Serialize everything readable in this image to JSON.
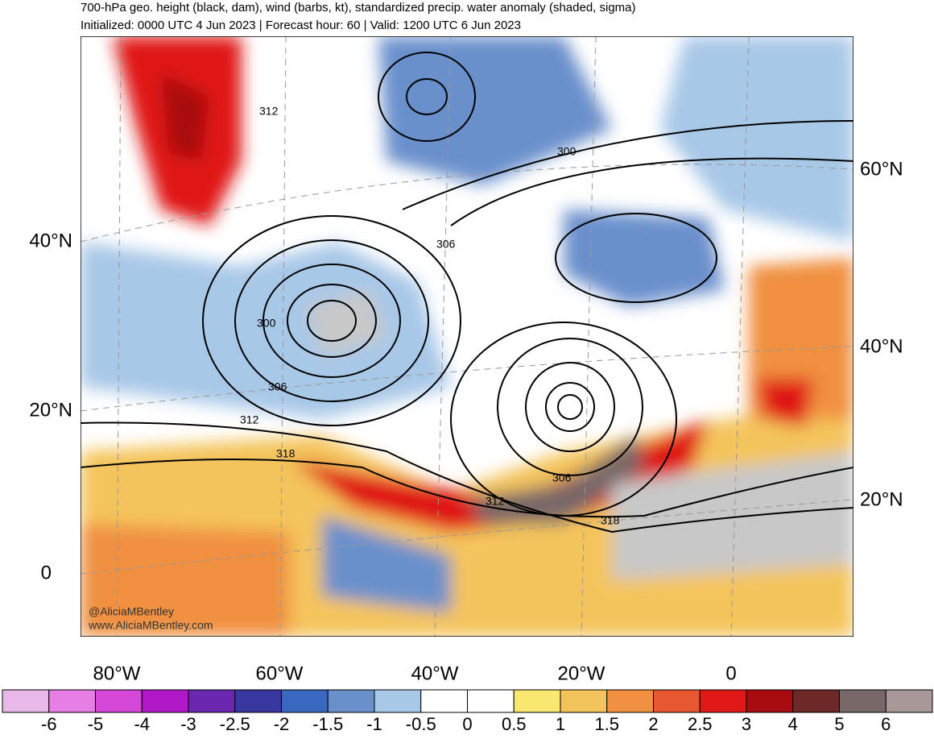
{
  "header": {
    "title": "700-hPa geo. height (black, dam), wind (barbs, kt), standardized precip. water anomaly (shaded, sigma)",
    "subtitle": "Initialized: 0000 UTC 4 Jun 2023 | Forecast hour: 60 | Valid: 1200 UTC 6 Jun 2023"
  },
  "map": {
    "lat_labels_left": [
      "40°N",
      "20°N",
      "0"
    ],
    "lat_labels_right": [
      "60°N",
      "40°N",
      "20°N"
    ],
    "lon_labels": [
      "80°W",
      "60°W",
      "40°W",
      "20°W",
      "0"
    ],
    "contour_labels": [
      "312",
      "300",
      "306",
      "300",
      "306",
      "312",
      "318",
      "312",
      "306",
      "318"
    ],
    "watermark": [
      "@AliciaMBentley",
      "www.AliciaMBentley.com"
    ]
  },
  "colorbar": {
    "colors": [
      "#e8b8e8",
      "#e67ee6",
      "#d548d8",
      "#b018c8",
      "#6a28b0",
      "#3838a0",
      "#3a68c0",
      "#6a90cc",
      "#a8c8e8",
      "#ffffff",
      "#ffffff",
      "#f8e870",
      "#f4c45c",
      "#f09040",
      "#e85830",
      "#e01818",
      "#a80c10",
      "#6e2828",
      "#786868",
      "#a89898"
    ],
    "labels": [
      -6,
      -5,
      -4,
      -3,
      -2.5,
      -2,
      -1.5,
      -1,
      -0.5,
      0,
      0.5,
      1,
      1.5,
      2,
      2.5,
      3,
      4,
      5,
      6
    ]
  }
}
